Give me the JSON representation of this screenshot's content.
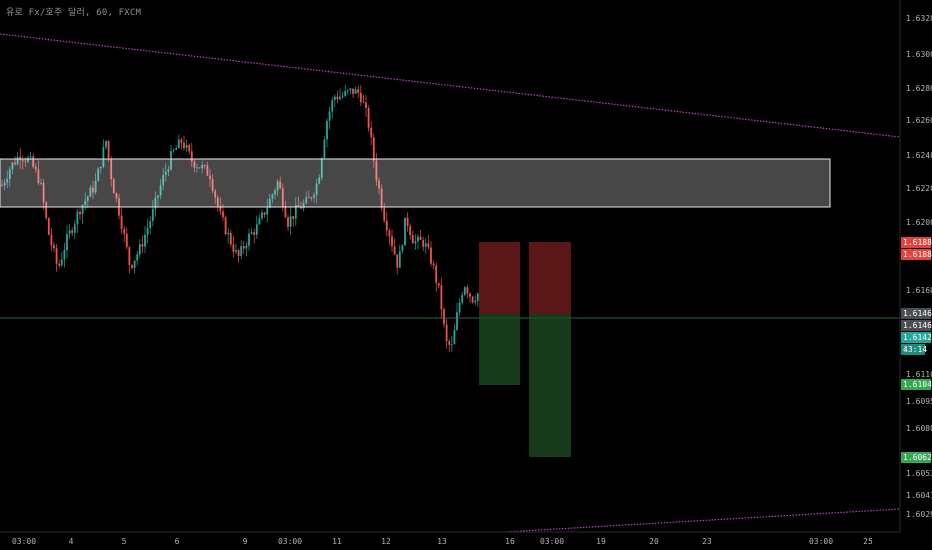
{
  "title": "유로 Fx/호주 달러, 60, FXCM",
  "chart_data": {
    "type": "candlestick",
    "yaxis": {
      "ticks": [
        1.632,
        1.63,
        1.628,
        1.626,
        1.624,
        1.622,
        1.62,
        1.616,
        1.611,
        1.6095,
        1.608,
        1.6053,
        1.6041,
        1.6029
      ],
      "tick_labels": [
        "1.63200",
        "1.63000",
        "1.62800",
        "1.62600",
        "1.62400",
        "1.62200",
        "1.62000",
        "1.61600",
        "1.61100",
        "1.60950",
        "1.60800",
        "1.60530",
        "1.60410",
        "1.60290"
      ]
    },
    "xaxis": {
      "tick_labels": [
        "03:00",
        "4",
        "5",
        "6",
        "9",
        "03:00",
        "11",
        "12",
        "13",
        "16",
        "03:00",
        "19",
        "20",
        "23",
        "03:00",
        "25"
      ]
    },
    "price_labels": [
      {
        "text": "1.61885",
        "color": "#e0443c"
      },
      {
        "text": "1.61885",
        "color": "#e0443c"
      },
      {
        "text": "1.61465",
        "color": "#4a4d54"
      },
      {
        "text": "1.61465",
        "color": "#4a4d54"
      },
      {
        "text": "1.61429",
        "color": "#26a69a"
      },
      {
        "text": "43:14",
        "color": "#1d8a80"
      },
      {
        "text": "1.61045",
        "color": "#34a853"
      },
      {
        "text": "1.60625",
        "color": "#34a853"
      }
    ],
    "partial_label": "1.",
    "colors": {
      "up": "#26a69a",
      "down": "#ef5350",
      "trendline": "#c040c0",
      "zone": "#ffffff"
    }
  }
}
